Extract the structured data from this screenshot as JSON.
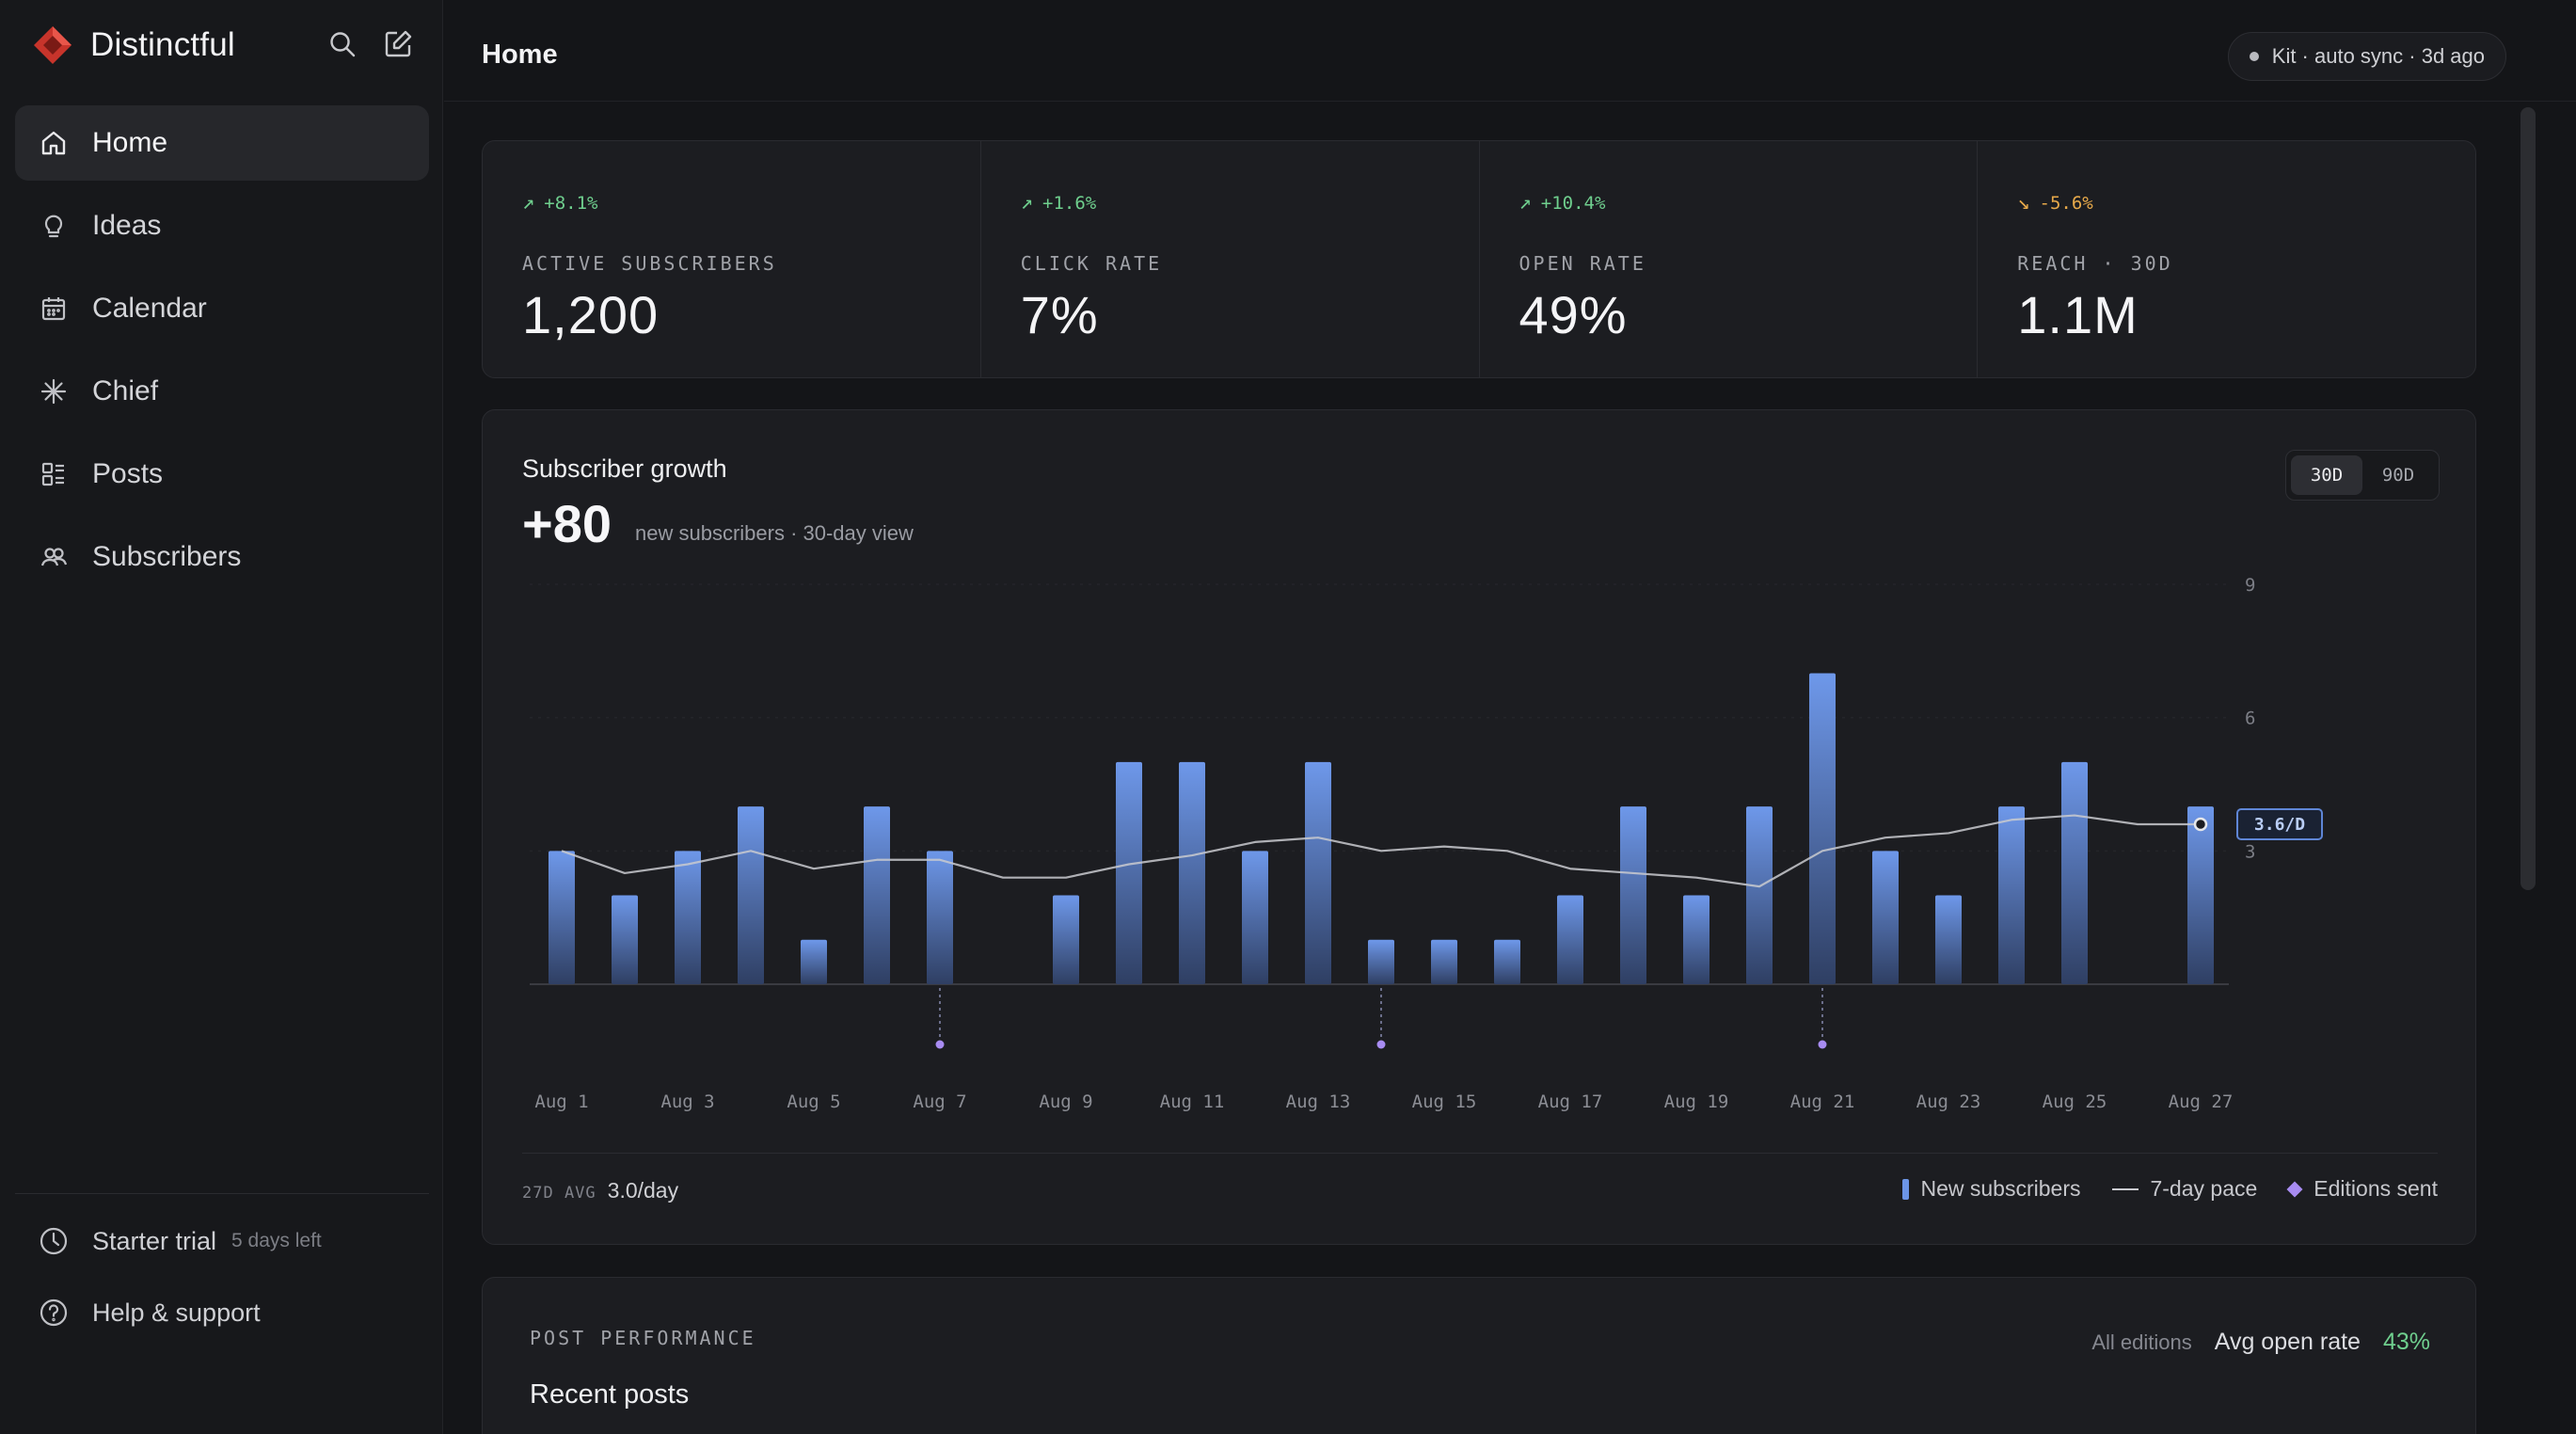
{
  "brand": {
    "name": "Distinctful"
  },
  "nav": [
    {
      "label": "Home",
      "icon": "home-icon",
      "active": true
    },
    {
      "label": "Ideas",
      "icon": "lightbulb-icon"
    },
    {
      "label": "Calendar",
      "icon": "calendar-icon"
    },
    {
      "label": "Chief",
      "icon": "sparkle-icon"
    },
    {
      "label": "Posts",
      "icon": "posts-icon"
    },
    {
      "label": "Subscribers",
      "icon": "users-icon"
    }
  ],
  "sidebar_footer": {
    "trial_label": "Starter trial",
    "trial_days": "5 days left",
    "help_label": "Help & support"
  },
  "header": {
    "title": "Home",
    "sync_status": "Kit · auto sync · 3d ago"
  },
  "stats": [
    {
      "delta": "+8.1%",
      "trend": "up",
      "label": "ACTIVE SUBSCRIBERS",
      "value": "1,200"
    },
    {
      "delta": "+1.6%",
      "trend": "up",
      "label": "CLICK RATE",
      "value": "7%"
    },
    {
      "delta": "+10.4%",
      "trend": "up",
      "label": "OPEN RATE",
      "value": "49%"
    },
    {
      "delta": "-5.6%",
      "trend": "down",
      "label": "REACH · 30D",
      "value": "1.1M"
    }
  ],
  "growth": {
    "title": "Subscriber growth",
    "big_value": "+80",
    "subtitle": "new subscribers · 30-day view",
    "ranges": [
      "30D",
      "90D"
    ],
    "active_range": "30D",
    "avg_label": "27D AVG",
    "avg_value": "3.0/day",
    "pace_badge": "3.6/D",
    "legend": [
      "New subscribers",
      "7-day pace",
      "Editions sent"
    ]
  },
  "chart_data": {
    "type": "bar",
    "x": [
      "Aug 1",
      "Aug 2",
      "Aug 3",
      "Aug 4",
      "Aug 5",
      "Aug 6",
      "Aug 7",
      "Aug 8",
      "Aug 9",
      "Aug 10",
      "Aug 11",
      "Aug 12",
      "Aug 13",
      "Aug 14",
      "Aug 15",
      "Aug 16",
      "Aug 17",
      "Aug 18",
      "Aug 19",
      "Aug 20",
      "Aug 21",
      "Aug 22",
      "Aug 23",
      "Aug 24",
      "Aug 25",
      "Aug 26",
      "Aug 27"
    ],
    "tick_labels": [
      "Aug 1",
      "Aug 3",
      "Aug 5",
      "Aug 7",
      "Aug 9",
      "Aug 11",
      "Aug 13",
      "Aug 15",
      "Aug 17",
      "Aug 19",
      "Aug 21",
      "Aug 23",
      "Aug 25",
      "Aug 27"
    ],
    "series": [
      {
        "name": "New subscribers",
        "type": "bar",
        "color": "#6c95e6",
        "values": [
          3,
          2,
          3,
          4,
          1,
          4,
          3,
          0,
          2,
          5,
          5,
          3,
          5,
          1,
          1,
          1,
          2,
          4,
          2,
          4,
          7,
          3,
          2,
          4,
          5,
          0,
          4
        ]
      },
      {
        "name": "7-day pace",
        "type": "line",
        "color": "#c9cacf",
        "values": [
          3.0,
          2.5,
          2.7,
          3.0,
          2.6,
          2.8,
          2.8,
          2.4,
          2.4,
          2.7,
          2.9,
          3.2,
          3.3,
          3.0,
          3.1,
          3.0,
          2.6,
          2.5,
          2.4,
          2.2,
          3.0,
          3.3,
          3.4,
          3.7,
          3.8,
          3.6,
          3.6
        ]
      },
      {
        "name": "Editions sent",
        "type": "marker",
        "color": "#a88cf2",
        "x": [
          "Aug 7",
          "Aug 14",
          "Aug 21"
        ]
      }
    ],
    "ylim": [
      0,
      9
    ],
    "yticks": [
      3,
      6,
      9
    ],
    "grid": true,
    "legend": "bottom-right"
  },
  "post_performance": {
    "label": "POST PERFORMANCE",
    "title": "Recent posts",
    "filter": "All editions",
    "metric_label": "Avg open rate",
    "metric_value": "43%"
  },
  "colors": {
    "accent": "#6c95e6",
    "positive": "#6fcf8e",
    "negative": "#e7a94a",
    "edition": "#a88cf2",
    "brand": "#e0453a"
  }
}
